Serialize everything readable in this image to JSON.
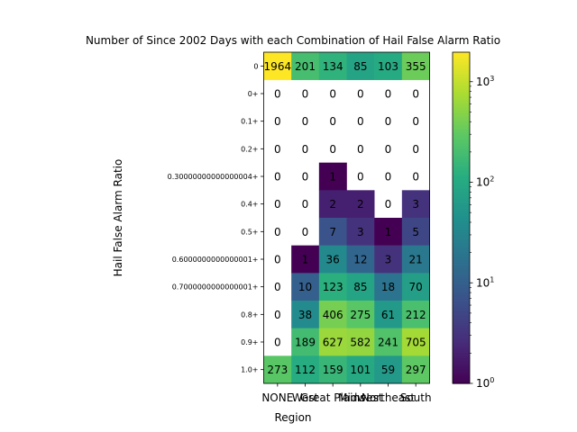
{
  "chart_data": {
    "type": "heatmap",
    "title": "Number of Since 2002 Days with each Combination of Hail False Alarm Ratio",
    "xlabel": "Region",
    "ylabel": "Hail False Alarm Ratio",
    "categories_x": [
      "NONE",
      "West",
      "Great Plains",
      "Midwest",
      "Northeast",
      "South"
    ],
    "categories_y": [
      "0",
      "0+",
      "0.1+",
      "0.2+",
      "0.30000000000000004+",
      "0.4+",
      "0.5+",
      "0.6000000000000001+",
      "0.7000000000000001+",
      "0.8+",
      "0.9+",
      "1.0+"
    ],
    "values": [
      [
        1964,
        201,
        134,
        85,
        103,
        355
      ],
      [
        0,
        0,
        0,
        0,
        0,
        0
      ],
      [
        0,
        0,
        0,
        0,
        0,
        0
      ],
      [
        0,
        0,
        0,
        0,
        0,
        0
      ],
      [
        0,
        0,
        1,
        0,
        0,
        0
      ],
      [
        0,
        0,
        2,
        2,
        0,
        3
      ],
      [
        0,
        0,
        7,
        3,
        1,
        5
      ],
      [
        0,
        1,
        36,
        12,
        3,
        21
      ],
      [
        0,
        10,
        123,
        85,
        18,
        70
      ],
      [
        0,
        38,
        406,
        275,
        61,
        212
      ],
      [
        0,
        189,
        627,
        582,
        241,
        705
      ],
      [
        273,
        112,
        159,
        101,
        59,
        297
      ]
    ],
    "colorbar": {
      "scale": "log",
      "range": [
        1,
        1964
      ],
      "ticks": [
        {
          "value": 1,
          "base": "10",
          "exp": "0"
        },
        {
          "value": 10,
          "base": "10",
          "exp": "1"
        },
        {
          "value": 100,
          "base": "10",
          "exp": "2"
        },
        {
          "value": 1000,
          "base": "10",
          "exp": "3"
        }
      ],
      "colormap": "viridis"
    }
  }
}
